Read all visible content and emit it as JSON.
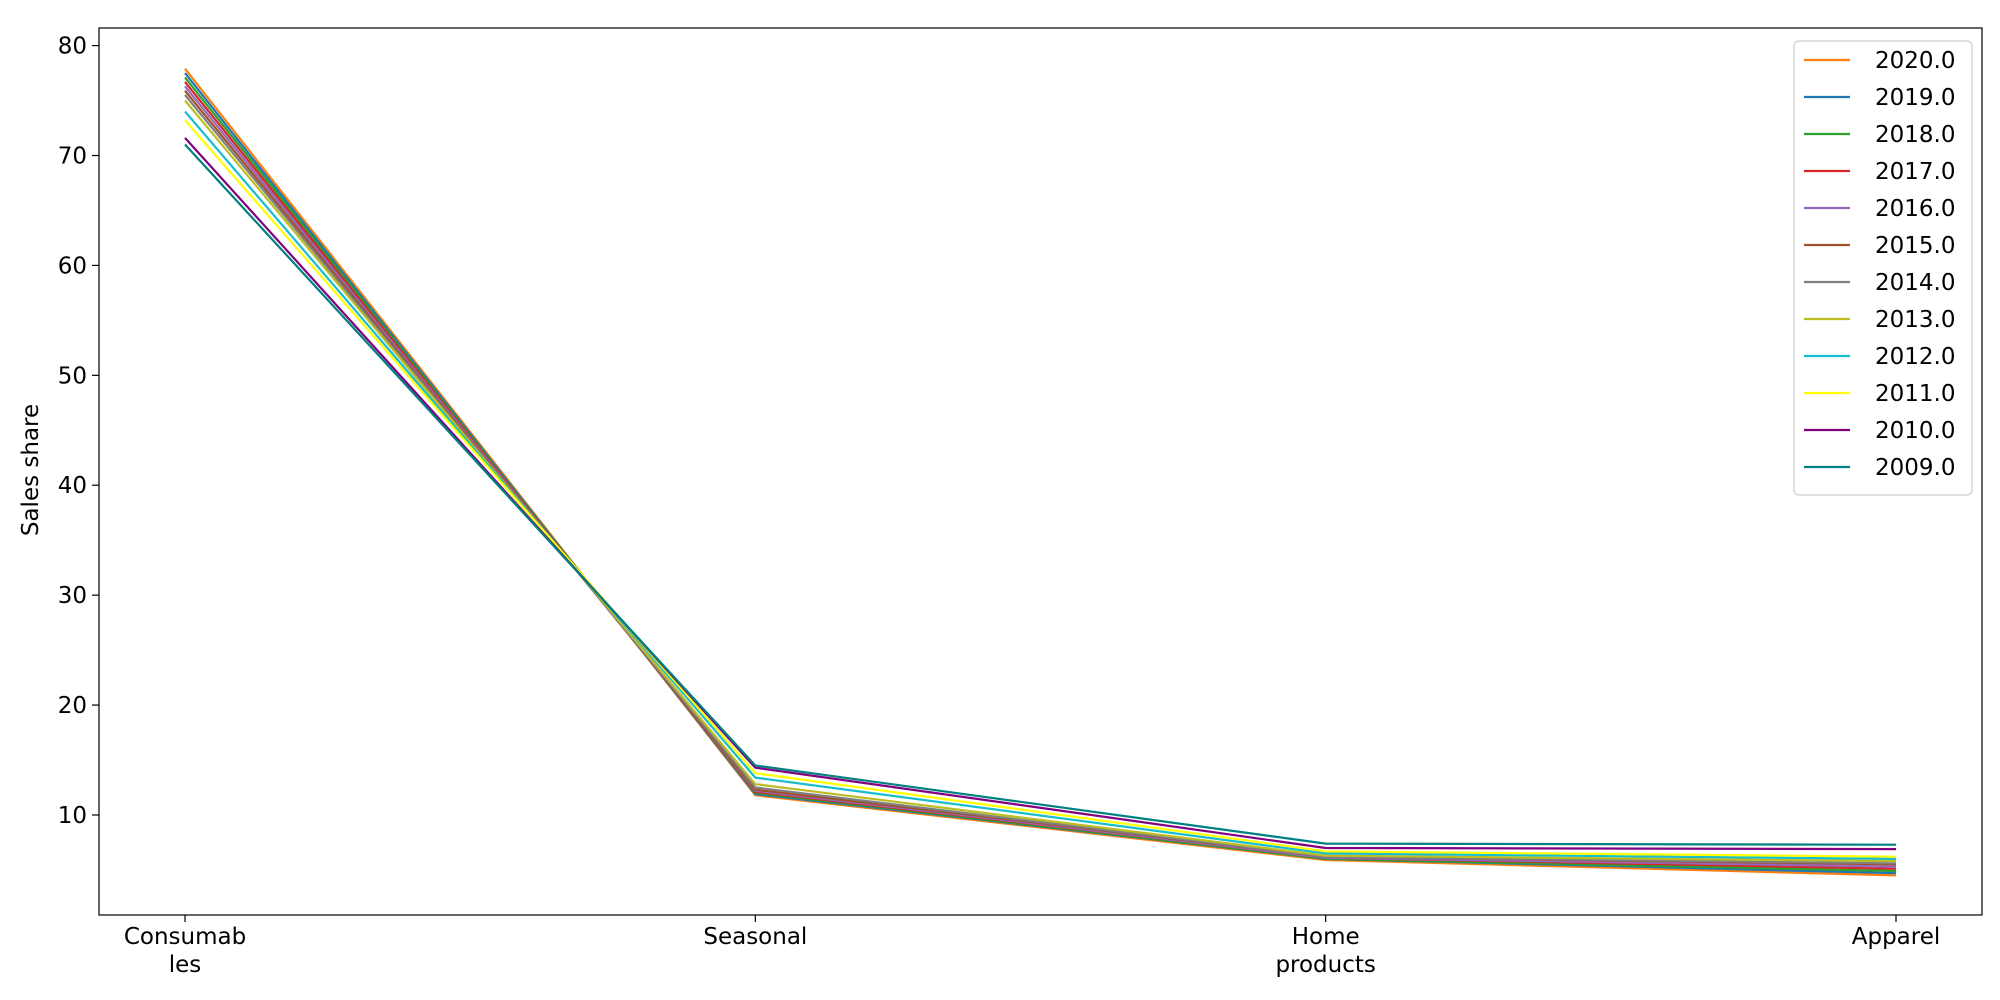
{
  "chart_data": {
    "type": "line",
    "categories": [
      "Consumables",
      "Seasonal",
      "Home products",
      "Apparel"
    ],
    "category_tick_lines": [
      [
        "Consumab",
        "les"
      ],
      [
        "Seasonal"
      ],
      [
        "Home",
        "products"
      ],
      [
        "Apparel"
      ]
    ],
    "xlabel": "",
    "ylabel": "Sales share",
    "ylim": [
      0.9,
      81.6
    ],
    "yticks": [
      10,
      20,
      30,
      40,
      50,
      60,
      70,
      80
    ],
    "grid": false,
    "legend_placement": "top-right",
    "series": [
      {
        "name": "2020.0",
        "color": "#ff7f0e",
        "values": [
          77.9,
          11.8,
          5.9,
          4.5
        ]
      },
      {
        "name": "2019.0",
        "color": "#1f77b4",
        "values": [
          77.5,
          11.9,
          6.0,
          4.7
        ]
      },
      {
        "name": "2018.0",
        "color": "#2ca02c",
        "values": [
          77.1,
          12.0,
          6.0,
          4.9
        ]
      },
      {
        "name": "2017.0",
        "color": "#d62728",
        "values": [
          76.7,
          12.1,
          6.1,
          5.1
        ]
      },
      {
        "name": "2016.0",
        "color": "#9467bd",
        "values": [
          76.3,
          12.2,
          6.1,
          5.3
        ]
      },
      {
        "name": "2015.0",
        "color": "#a0522d",
        "values": [
          75.9,
          12.3,
          6.2,
          5.5
        ]
      },
      {
        "name": "2014.0",
        "color": "#7f7f7f",
        "values": [
          75.5,
          12.5,
          6.2,
          5.6
        ]
      },
      {
        "name": "2013.0",
        "color": "#bcbd22",
        "values": [
          75.0,
          12.8,
          6.3,
          5.8
        ]
      },
      {
        "name": "2012.0",
        "color": "#17becf",
        "values": [
          74.0,
          13.4,
          6.5,
          6.0
        ]
      },
      {
        "name": "2011.0",
        "color": "#ffff00",
        "values": [
          73.2,
          13.8,
          6.7,
          6.2
        ]
      },
      {
        "name": "2010.0",
        "color": "#800080",
        "values": [
          71.6,
          14.3,
          7.0,
          6.9
        ]
      },
      {
        "name": "2009.0",
        "color": "#008080",
        "values": [
          71.0,
          14.5,
          7.4,
          7.3
        ]
      }
    ]
  }
}
